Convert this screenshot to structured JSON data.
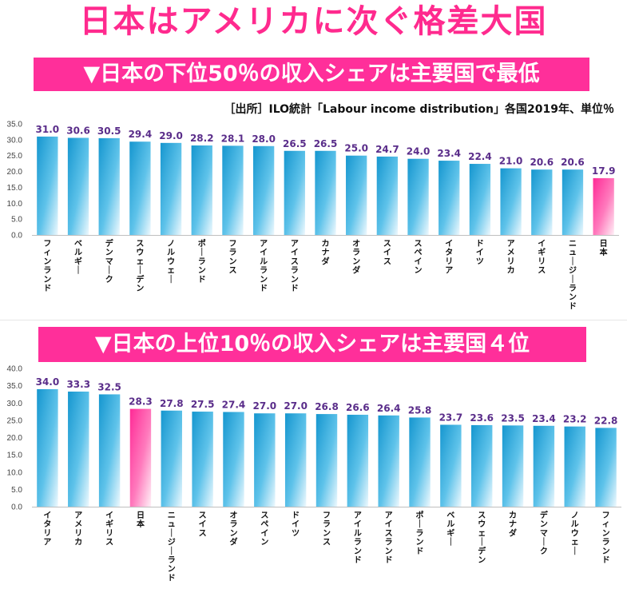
{
  "title": "日本はアメリカに次ぐ格差大国",
  "source": "［出所］ILO統計「Labour income distribution」各国2019年、単位％",
  "colors": {
    "accent": "#ff2f9a",
    "bar_top": "#1b9fd3",
    "bar_bottom": "#e8f7fd",
    "japan_top": "#ff2f9a",
    "japan_bottom": "#fde3f0",
    "label": "#5a2d8a"
  },
  "chart_data": [
    {
      "type": "bar",
      "title": "▼日本の下位50％の収入シェアは主要国で最低",
      "categories": [
        "フィンランド",
        "ベルギー",
        "デンマーク",
        "スウェーデン",
        "ノルウェー",
        "ポーランド",
        "フランス",
        "アイルランド",
        "アイスランド",
        "カナダ",
        "オランダ",
        "スイス",
        "スペイン",
        "イタリア",
        "ドイツ",
        "アメリカ",
        "イギリス",
        "ニュージーランド",
        "日本"
      ],
      "values": [
        31.0,
        30.6,
        30.5,
        29.4,
        29.0,
        28.2,
        28.1,
        28.0,
        26.5,
        26.5,
        25.0,
        24.7,
        24.0,
        23.4,
        22.4,
        21.0,
        20.6,
        20.6,
        17.9
      ],
      "value_labels": [
        "31.0",
        "30.6",
        "30.5",
        "29.4",
        "29.0",
        "28.2",
        "28.1",
        "28.0",
        "26.5",
        "26.5",
        "25.0",
        "24.7",
        "24.0",
        "23.4",
        "22.4",
        "21.0",
        "20.6",
        "20.6",
        "17.9"
      ],
      "highlight": "日本",
      "ylim": [
        0,
        35
      ],
      "yticks": [
        "0.0",
        "5.0",
        "10.0",
        "15.0",
        "20.0",
        "25.0",
        "30.0",
        "35.0"
      ],
      "grid": false
    },
    {
      "type": "bar",
      "title": "▼日本の上位10％の収入シェアは主要国４位",
      "categories": [
        "イタリア",
        "アメリカ",
        "イギリス",
        "日本",
        "ニュージーランド",
        "スイス",
        "オランダ",
        "スペイン",
        "ドイツ",
        "フランス",
        "アイルランド",
        "アイスランド",
        "ポーランド",
        "ベルギー",
        "スウェーデン",
        "カナダ",
        "デンマーク",
        "ノルウェー",
        "フィンランド"
      ],
      "values": [
        34.0,
        33.3,
        32.5,
        28.3,
        27.8,
        27.5,
        27.4,
        27.0,
        27.0,
        26.8,
        26.6,
        26.4,
        25.8,
        23.7,
        23.6,
        23.5,
        23.4,
        23.2,
        22.8
      ],
      "value_labels": [
        "34.0",
        "33.3",
        "32.5",
        "28.3",
        "27.8",
        "27.5",
        "27.4",
        "27.0",
        "27.0",
        "26.8",
        "26.6",
        "26.4",
        "25.8",
        "23.7",
        "23.6",
        "23.5",
        "23.4",
        "23.2",
        "22.8"
      ],
      "highlight": "日本",
      "ylim": [
        0,
        40
      ],
      "yticks": [
        "0.0",
        "5.0",
        "10.0",
        "15.0",
        "20.0",
        "25.0",
        "30.0",
        "35.0",
        "40.0"
      ],
      "grid": false
    }
  ]
}
